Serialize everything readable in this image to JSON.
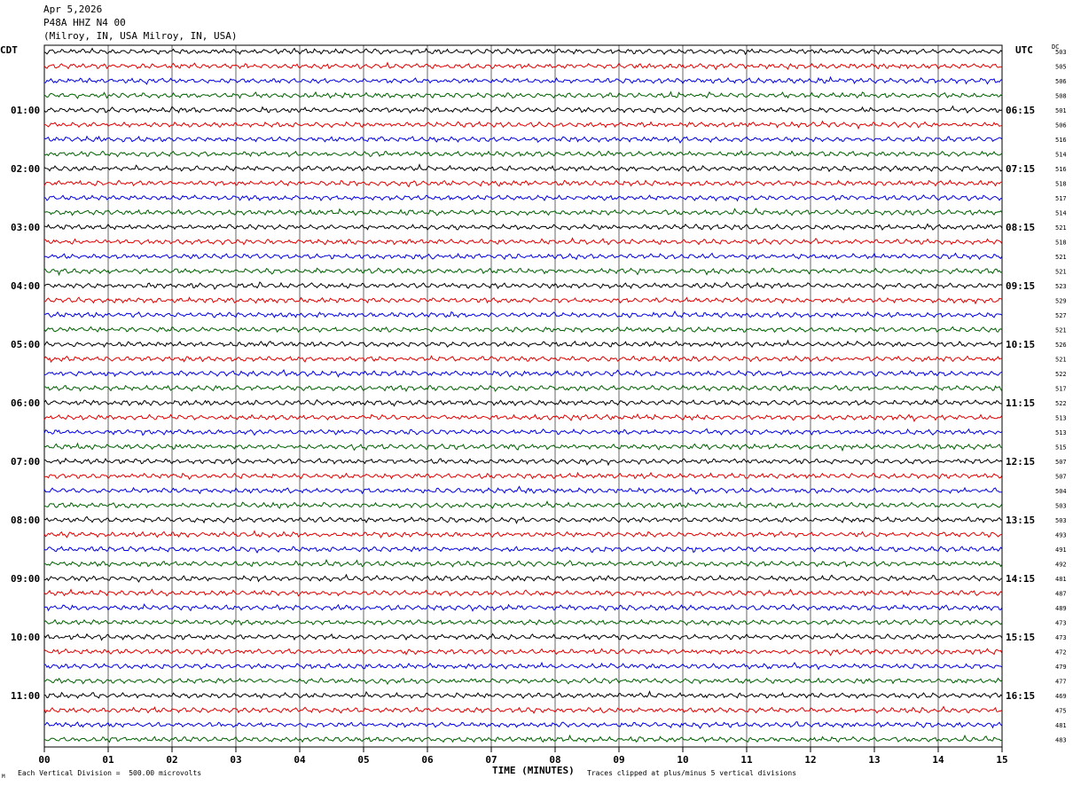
{
  "header": {
    "date": "Apr 5,2026",
    "station": "P48A HHZ N4 00",
    "location": "(Milroy, IN, USA Milroy, IN, USA)"
  },
  "left_label": "CDT",
  "right_label": "UTC",
  "dc_label": "DC",
  "footer": {
    "scale": "Each Vertical Division =  500.00 microvolts",
    "clip": "Traces clipped at plus/minus 5 vertical divisions",
    "corner": "M"
  },
  "chart_data": {
    "type": "line",
    "title": "",
    "xlabel": "TIME (MINUTES)",
    "xlim": [
      0,
      15
    ],
    "x_ticks": [
      "00",
      "01",
      "02",
      "03",
      "04",
      "05",
      "06",
      "07",
      "08",
      "09",
      "10",
      "11",
      "12",
      "13",
      "14",
      "15"
    ],
    "trace_colors": [
      "#000000",
      "#e00000",
      "#0000e0",
      "#006000"
    ],
    "left_hour_labels": [
      "01:00",
      "02:00",
      "03:00",
      "04:00",
      "05:00",
      "06:00",
      "07:00",
      "08:00",
      "09:00",
      "10:00",
      "11:00"
    ],
    "right_hour_labels": [
      "06:15",
      "07:15",
      "08:15",
      "09:15",
      "10:15",
      "11:15",
      "12:15",
      "13:15",
      "14:15",
      "15:15",
      "16:15"
    ],
    "dc_offsets": [
      503,
      505,
      506,
      508,
      501,
      506,
      516,
      514,
      516,
      518,
      517,
      514,
      521,
      518,
      521,
      521,
      523,
      529,
      527,
      521,
      526,
      521,
      522,
      517,
      522,
      513,
      513,
      515,
      507,
      507,
      504,
      503,
      503,
      493,
      491,
      492,
      481,
      487,
      489,
      473,
      473,
      472,
      479,
      477,
      469,
      475,
      481,
      483
    ]
  }
}
